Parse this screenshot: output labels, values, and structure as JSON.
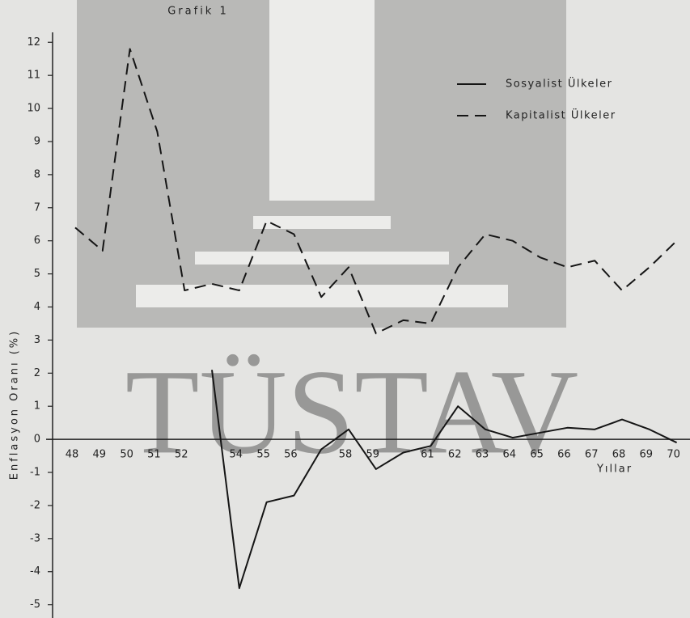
{
  "chart_data": {
    "type": "line",
    "title": "Grafik 1",
    "watermark": "TÜSTAV",
    "x_label": "Yıllar",
    "y_label": "Enflasyon Oranı (%)",
    "categories": [
      "48",
      "49",
      "50",
      "51",
      "52",
      null,
      "54",
      "55",
      "56",
      null,
      "58",
      "59",
      null,
      "61",
      "62",
      "63",
      "64",
      "65",
      "66",
      "67",
      "68",
      "69",
      "70"
    ],
    "series": [
      {
        "name": "Sosyalist Ülkeler",
        "color": "#151515",
        "line_style": "solid",
        "values": [
          null,
          null,
          null,
          null,
          null,
          2.1,
          -4.5,
          -1.9,
          -1.7,
          -0.3,
          0.3,
          -0.9,
          -0.4,
          -0.2,
          1.0,
          0.3,
          0.05,
          0.2,
          0.35,
          0.3,
          0.6,
          0.3,
          -0.1
        ]
      },
      {
        "name": "Kapitalist Ülkeler",
        "color": "#151515",
        "line_style": "dashed",
        "values": [
          6.4,
          5.7,
          11.8,
          9.3,
          4.5,
          4.7,
          4.5,
          6.6,
          6.2,
          4.3,
          5.2,
          3.2,
          3.6,
          3.5,
          5.2,
          6.2,
          6.0,
          5.5,
          5.2,
          5.4,
          4.5,
          5.2,
          6.0
        ]
      }
    ],
    "ylim": [
      -5.4,
      12.3
    ],
    "yticks": [
      -5,
      -4,
      -3,
      -2,
      -1,
      0,
      1,
      2,
      3,
      4,
      5,
      6,
      7,
      8,
      9,
      10,
      11,
      12
    ],
    "legend": "upper right"
  }
}
